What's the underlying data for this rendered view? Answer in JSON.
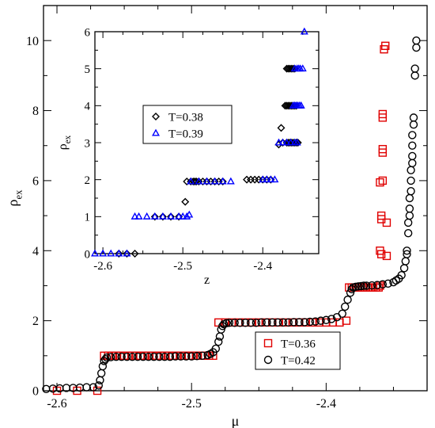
{
  "colors": {
    "red": "#e00000",
    "black": "#000000",
    "blue": "#0000ff",
    "frame": "#000000"
  },
  "chart_data": [
    {
      "type": "scatter",
      "xlabel": "μ",
      "ylabel": "ρ",
      "ylabel_sub": "ex",
      "xlim": [
        -2.61,
        -2.325
      ],
      "ylim": [
        0,
        11
      ],
      "xticks": [
        -2.6,
        -2.5,
        -2.4
      ],
      "xtick_labels": [
        "-2.6",
        "-2.5",
        "-2.4"
      ],
      "yticks": [
        0,
        2,
        4,
        6,
        8,
        10
      ],
      "ytick_labels": [
        "0",
        "2",
        "4",
        "6",
        "8",
        "10"
      ],
      "legend_position": "bottom-right",
      "series": [
        {
          "name": "T=0.36",
          "color": "red",
          "marker": "square",
          "x": [
            -2.6,
            -2.585,
            -2.57,
            -2.565,
            -2.562,
            -2.559,
            -2.556,
            -2.553,
            -2.55,
            -2.547,
            -2.544,
            -2.541,
            -2.538,
            -2.535,
            -2.532,
            -2.529,
            -2.526,
            -2.523,
            -2.52,
            -2.517,
            -2.514,
            -2.511,
            -2.508,
            -2.505,
            -2.502,
            -2.499,
            -2.496,
            -2.493,
            -2.49,
            -2.487,
            -2.484,
            -2.48,
            -2.475,
            -2.47,
            -2.465,
            -2.46,
            -2.455,
            -2.45,
            -2.445,
            -2.44,
            -2.435,
            -2.43,
            -2.425,
            -2.42,
            -2.415,
            -2.41,
            -2.405,
            -2.4,
            -2.395,
            -2.39,
            -2.385,
            -2.383,
            -2.381,
            -2.379,
            -2.377,
            -2.375,
            -2.373,
            -2.371,
            -2.369,
            -2.367,
            -2.365,
            -2.363,
            -2.361,
            -2.36,
            -2.36,
            -2.359,
            -2.359,
            -2.359,
            -2.36,
            -2.358,
            -2.358,
            -2.358,
            -2.358,
            -2.358,
            -2.355,
            -2.355,
            -2.357,
            -2.356
          ],
          "y": [
            0,
            0,
            0,
            1,
            1,
            1,
            1,
            1,
            1,
            1,
            1,
            1,
            1,
            1,
            1,
            1,
            1,
            1,
            1,
            1,
            1,
            1,
            1,
            1,
            1,
            1,
            1,
            1,
            1,
            1,
            1,
            1.95,
            1.95,
            1.95,
            1.95,
            1.95,
            1.95,
            1.95,
            1.95,
            1.95,
            1.95,
            1.95,
            1.95,
            1.95,
            1.95,
            1.95,
            1.95,
            1.95,
            1.95,
            1.95,
            2,
            2.95,
            2.95,
            2.95,
            2.95,
            2.95,
            2.95,
            2.95,
            2.95,
            2.95,
            2.95,
            2.95,
            2.95,
            3,
            4,
            3.9,
            4.9,
            5,
            5.95,
            6,
            6.8,
            6.9,
            7.8,
            7.9,
            3.85,
            4.8,
            9.75,
            9.85
          ]
        },
        {
          "name": "T=0.42",
          "color": "black",
          "marker": "circle",
          "x": [
            -2.608,
            -2.603,
            -2.598,
            -2.593,
            -2.588,
            -2.583,
            -2.578,
            -2.573,
            -2.569,
            -2.568,
            -2.567,
            -2.566,
            -2.565,
            -2.564,
            -2.563,
            -2.56,
            -2.556,
            -2.552,
            -2.548,
            -2.544,
            -2.54,
            -2.536,
            -2.532,
            -2.528,
            -2.524,
            -2.52,
            -2.516,
            -2.512,
            -2.508,
            -2.504,
            -2.5,
            -2.496,
            -2.492,
            -2.488,
            -2.486,
            -2.484,
            -2.482,
            -2.48,
            -2.479,
            -2.478,
            -2.477,
            -2.476,
            -2.474,
            -2.472,
            -2.468,
            -2.464,
            -2.46,
            -2.456,
            -2.452,
            -2.448,
            -2.444,
            -2.44,
            -2.436,
            -2.432,
            -2.428,
            -2.424,
            -2.42,
            -2.416,
            -2.412,
            -2.408,
            -2.404,
            -2.4,
            -2.396,
            -2.392,
            -2.388,
            -2.386,
            -2.384,
            -2.382,
            -2.381,
            -2.38,
            -2.378,
            -2.376,
            -2.374,
            -2.372,
            -2.37,
            -2.366,
            -2.362,
            -2.358,
            -2.354,
            -2.35,
            -2.348,
            -2.346,
            -2.344,
            -2.342,
            -2.341,
            -2.34,
            -2.34,
            -2.339,
            -2.339,
            -2.338,
            -2.338,
            -2.338,
            -2.337,
            -2.337,
            -2.337,
            -2.336,
            -2.336,
            -2.336,
            -2.336,
            -2.335,
            -2.335,
            -2.334,
            -2.334,
            -2.333,
            -2.333
          ],
          "y": [
            0.05,
            0.06,
            0.07,
            0.08,
            0.08,
            0.09,
            0.1,
            0.1,
            0.15,
            0.3,
            0.5,
            0.7,
            0.85,
            0.9,
            0.95,
            0.96,
            0.97,
            0.97,
            0.97,
            0.97,
            0.97,
            0.97,
            0.97,
            0.97,
            0.97,
            0.97,
            0.97,
            0.98,
            0.98,
            0.98,
            0.98,
            0.99,
            1,
            1.02,
            1.05,
            1.1,
            1.2,
            1.4,
            1.55,
            1.75,
            1.85,
            1.9,
            1.93,
            1.94,
            1.94,
            1.94,
            1.94,
            1.94,
            1.94,
            1.95,
            1.95,
            1.95,
            1.95,
            1.95,
            1.95,
            1.96,
            1.96,
            1.96,
            1.97,
            1.98,
            2,
            2.02,
            2.05,
            2.1,
            2.2,
            2.4,
            2.6,
            2.8,
            2.9,
            2.95,
            2.97,
            2.98,
            2.99,
            3,
            3,
            3.01,
            3.02,
            3.04,
            3.06,
            3.1,
            3.15,
            3.2,
            3.3,
            3.5,
            3.7,
            3.9,
            4.0,
            4.5,
            4.8,
            5.0,
            5.2,
            5.5,
            5.7,
            6.0,
            6.3,
            6.5,
            6.7,
            7.0,
            7.3,
            7.6,
            7.8,
            9.0,
            9.2,
            9.8,
            10.0
          ]
        }
      ]
    },
    {
      "type": "scatter",
      "xlabel": "z",
      "ylabel": "ρ",
      "ylabel_sub": "ex",
      "xlim": [
        -2.61,
        -2.33
      ],
      "ylim": [
        0,
        6
      ],
      "xticks": [
        -2.6,
        -2.5,
        -2.4
      ],
      "xtick_labels": [
        "-2.6",
        "-2.5",
        "-2.4"
      ],
      "yticks": [
        0,
        1,
        2,
        3,
        4,
        5,
        6
      ],
      "ytick_labels": [
        "0",
        "1",
        "2",
        "3",
        "4",
        "5",
        "6"
      ],
      "legend_position": "upper-left",
      "series": [
        {
          "name": "T=0.38",
          "color": "black",
          "marker": "diamond",
          "x": [
            -2.58,
            -2.57,
            -2.56,
            -2.535,
            -2.525,
            -2.515,
            -2.505,
            -2.497,
            -2.495,
            -2.49,
            -2.487,
            -2.485,
            -2.483,
            -2.48,
            -2.475,
            -2.47,
            -2.465,
            -2.46,
            -2.455,
            -2.45,
            -2.42,
            -2.415,
            -2.41,
            -2.405,
            -2.4,
            -2.395,
            -2.39,
            -2.38,
            -2.375,
            -2.37,
            -2.368,
            -2.366,
            -2.364,
            -2.362,
            -2.36,
            -2.358,
            -2.356,
            -2.372,
            -2.37,
            -2.368,
            -2.366,
            -2.364,
            -2.362,
            -2.36,
            -2.358,
            -2.37,
            -2.368,
            -2.366,
            -2.364,
            -2.362,
            -2.36,
            -2.377
          ],
          "y": [
            0,
            0,
            0,
            1,
            1,
            1,
            1,
            1.4,
            1.95,
            1.95,
            1.95,
            1.95,
            1.95,
            1.95,
            1.95,
            1.95,
            1.95,
            1.95,
            1.95,
            1.95,
            2,
            2,
            2,
            2,
            2,
            2,
            2,
            2.95,
            3,
            3,
            3,
            3,
            3,
            3,
            3,
            3,
            3,
            4,
            4,
            4,
            4,
            4,
            4,
            4,
            4,
            5,
            5,
            5,
            5,
            5,
            5,
            3.4
          ]
        },
        {
          "name": "T=0.39",
          "color": "blue",
          "marker": "triangle",
          "x": [
            -2.61,
            -2.6,
            -2.59,
            -2.58,
            -2.57,
            -2.56,
            -2.555,
            -2.545,
            -2.535,
            -2.525,
            -2.515,
            -2.505,
            -2.5,
            -2.495,
            -2.492,
            -2.49,
            -2.48,
            -2.47,
            -2.46,
            -2.45,
            -2.44,
            -2.4,
            -2.395,
            -2.39,
            -2.385,
            -2.38,
            -2.375,
            -2.37,
            -2.365,
            -2.36,
            -2.357,
            -2.362,
            -2.36,
            -2.358,
            -2.356,
            -2.354,
            -2.352,
            -2.36,
            -2.357,
            -2.355,
            -2.353,
            -2.35,
            -2.348
          ],
          "y": [
            0,
            0,
            0,
            0,
            0,
            1,
            1,
            1,
            1,
            1,
            1,
            1,
            1,
            1,
            1.05,
            1.95,
            1.95,
            1.95,
            1.95,
            1.95,
            1.95,
            2,
            2,
            2,
            2,
            3,
            3,
            3,
            3,
            3,
            3,
            4,
            4,
            4,
            4,
            4,
            4,
            5,
            5,
            5,
            5,
            5,
            6
          ]
        }
      ]
    }
  ]
}
